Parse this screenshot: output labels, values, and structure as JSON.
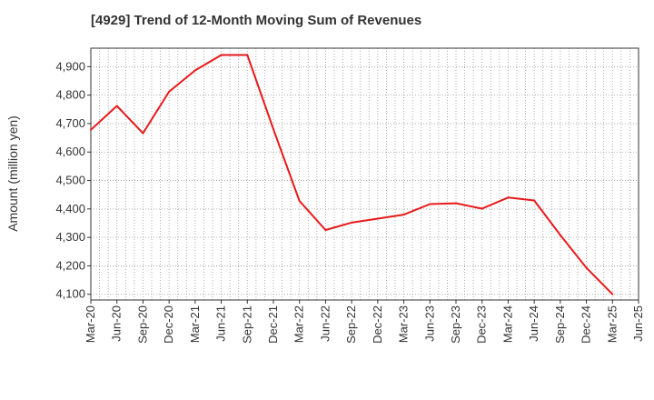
{
  "chart_data": {
    "type": "line",
    "title": "[4929]  Trend of 12-Month Moving Sum of Revenues",
    "ylabel": "Amount (million yen)",
    "xlabel": "",
    "ylim": [
      4080,
      4965
    ],
    "yticks": [
      4100,
      4200,
      4300,
      4400,
      4500,
      4600,
      4700,
      4800,
      4900
    ],
    "ytick_labels": [
      "4,100",
      "4,200",
      "4,300",
      "4,400",
      "4,500",
      "4,600",
      "4,700",
      "4,800",
      "4,900"
    ],
    "categories": [
      "Mar-20",
      "Jun-20",
      "Sep-20",
      "Dec-20",
      "Mar-21",
      "Jun-21",
      "Sep-21",
      "Dec-21",
      "Mar-22",
      "Jun-22",
      "Sep-22",
      "Dec-22",
      "Mar-23",
      "Jun-23",
      "Sep-23",
      "Dec-23",
      "Mar-24",
      "Jun-24",
      "Sep-24",
      "Dec-24",
      "Mar-25",
      "Jun-25"
    ],
    "series": [
      {
        "color": "#e8191a",
        "values": [
          4678,
          4762,
          4666,
          4812,
          4887,
          4941,
          4941,
          4680,
          4428,
          4326,
          4352,
          4366,
          4380,
          4417,
          4420,
          4401,
          4440,
          4430,
          4308,
          4193,
          4100,
          null
        ]
      }
    ],
    "grid": true,
    "legend": "none"
  }
}
